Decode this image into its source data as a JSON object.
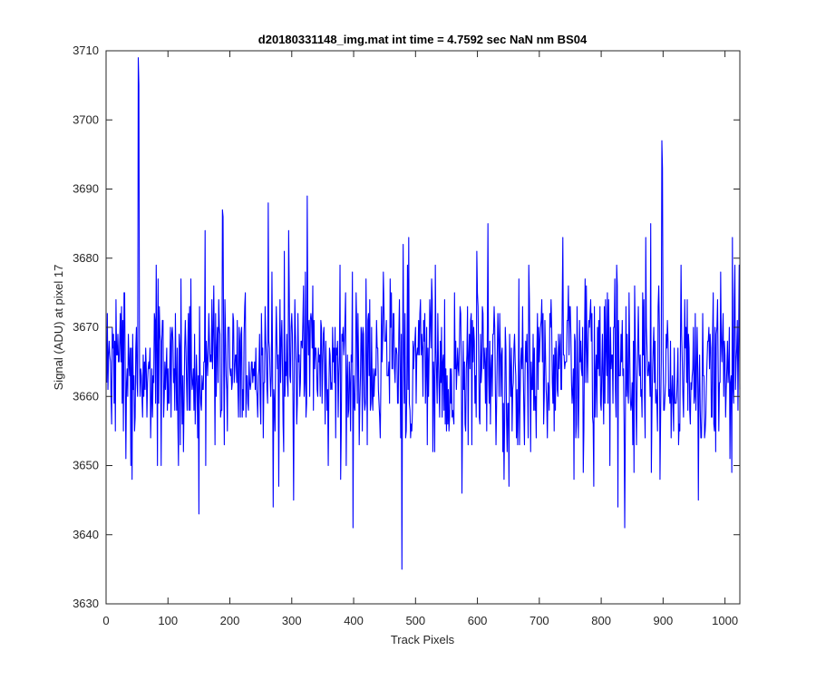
{
  "chart_data": {
    "type": "line",
    "title": "d20180331148_img.mat int time = 4.7592 sec  NaN nm BS04",
    "xlabel": "Track Pixels",
    "ylabel": "Signal (ADU) at pixel 17",
    "xlim": [
      0,
      1024
    ],
    "ylim": [
      3630,
      3710
    ],
    "xticks": [
      0,
      100,
      200,
      300,
      400,
      500,
      600,
      700,
      800,
      900,
      1000
    ],
    "yticks": [
      3630,
      3640,
      3650,
      3660,
      3670,
      3680,
      3690,
      3700,
      3710
    ],
    "grid": false,
    "box": true,
    "line_color": "#0000ff",
    "series": [
      {
        "x_start": 1,
        "x_step": 1,
        "noise_model": {
          "count": 1024,
          "mean": 3664.5,
          "sd": 6.5,
          "clip": [
            3641,
            3689
          ],
          "seed": 148
        },
        "notable_points": [
          [
            52,
            3709
          ],
          [
            53,
            3705
          ],
          [
            150,
            3643
          ],
          [
            160,
            3684
          ],
          [
            188,
            3687
          ],
          [
            262,
            3688
          ],
          [
            270,
            3644
          ],
          [
            303,
            3645
          ],
          [
            325,
            3689
          ],
          [
            399,
            3641
          ],
          [
            478,
            3635
          ],
          [
            480,
            3682
          ],
          [
            617,
            3685
          ],
          [
            738,
            3683
          ],
          [
            838,
            3641
          ],
          [
            880,
            3685
          ],
          [
            898,
            3697
          ],
          [
            899,
            3693
          ],
          [
            957,
            3645
          ],
          [
            1012,
            3683
          ]
        ]
      }
    ]
  }
}
